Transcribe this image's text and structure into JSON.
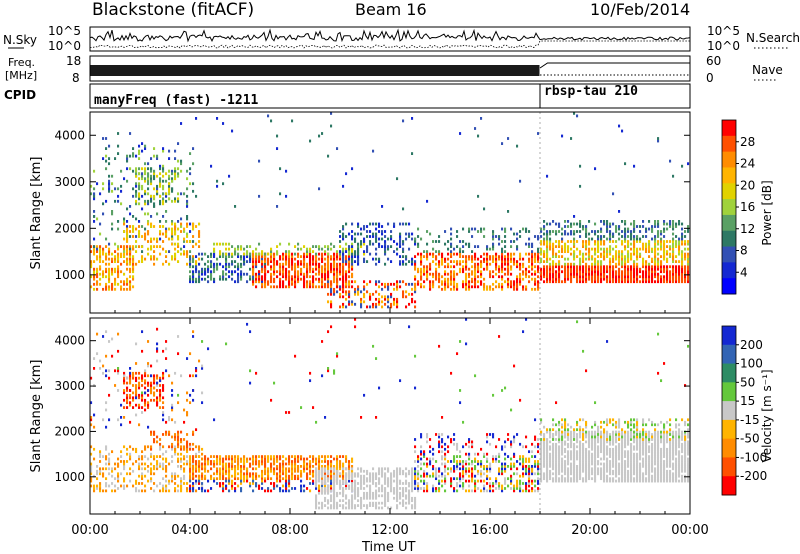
{
  "header": {
    "station": "Blackstone (fitACF)",
    "beam": "Beam 16",
    "date": "10/Feb/2014"
  },
  "summary_panels": {
    "nsky_label": "N.Sky",
    "nsky_top_tick": "10^5",
    "nsky_bottom_tick": "10^0",
    "nsearch_label": "N.Search",
    "freq_label_line1": "Freq.",
    "freq_label_line2": "[MHz]",
    "freq_top_tick": "18",
    "freq_bottom_tick": "8",
    "nave_label": "Nave",
    "nave_top_tick": "60",
    "nave_bottom_tick": "0",
    "cpid_label": "CPID",
    "cpid_segments": [
      {
        "name": "manyFreq (fast) -1211",
        "start_h": 0,
        "end_h": 18
      },
      {
        "name": "rbsp-tau 210",
        "start_h": 18,
        "end_h": 24
      }
    ]
  },
  "chart_data": [
    {
      "type": "heatmap",
      "name": "power",
      "ylabel": "Slant Range [km]",
      "colorbar_label": "Power [dB]",
      "colorbar_ticks": [
        "28",
        "24",
        "20",
        "16",
        "12",
        "8",
        "4"
      ],
      "colorbar_colors": [
        "#ff0000",
        "#ff5000",
        "#ff8c00",
        "#ffb400",
        "#e1d200",
        "#a0d23c",
        "#5aa064",
        "#2d7864",
        "#3250b4",
        "#1428d2",
        "#0000ff"
      ],
      "x_range_hours": [
        0,
        24
      ],
      "y_range_km": [
        180,
        4500
      ],
      "yticks": [
        1000,
        2000,
        3000,
        4000
      ],
      "ytick_labels": [
        "1000",
        "2000",
        "3000",
        "4000"
      ],
      "regions": [
        {
          "t0": 0.0,
          "t1": 1.8,
          "r0": 650,
          "r1": 1650,
          "colors": [
            "#ff8c00",
            "#ff5000",
            "#ffb400",
            "#e1d200"
          ],
          "density": 0.6
        },
        {
          "t0": 0.0,
          "t1": 4.2,
          "r0": 1500,
          "r1": 3800,
          "colors": [
            "#5aa064",
            "#3250b4",
            "#2d7864",
            "#a0d23c",
            "#1428d2"
          ],
          "density": 0.12
        },
        {
          "t0": 1.8,
          "t1": 3.6,
          "r0": 2500,
          "r1": 3300,
          "colors": [
            "#5aa064",
            "#2d7864",
            "#a0d23c",
            "#e1d200"
          ],
          "density": 0.45
        },
        {
          "t0": 1.4,
          "t1": 4.4,
          "r0": 1200,
          "r1": 2100,
          "colors": [
            "#ffb400",
            "#e1d200",
            "#ff8c00"
          ],
          "density": 0.35
        },
        {
          "t0": 4.0,
          "t1": 7.0,
          "r0": 850,
          "r1": 1450,
          "colors": [
            "#2d7864",
            "#5aa064",
            "#3250b4",
            "#1428d2"
          ],
          "density": 0.55
        },
        {
          "t0": 6.5,
          "t1": 10.5,
          "r0": 700,
          "r1": 1450,
          "colors": [
            "#ff0000",
            "#ff5000",
            "#ff8c00"
          ],
          "density": 0.75
        },
        {
          "t0": 5.0,
          "t1": 11.0,
          "r0": 1400,
          "r1": 1700,
          "colors": [
            "#a0d23c",
            "#e1d200",
            "#5aa064"
          ],
          "density": 0.4
        },
        {
          "t0": 9.5,
          "t1": 13.0,
          "r0": 280,
          "r1": 900,
          "colors": [
            "#ff5000",
            "#ff0000",
            "#ffb400",
            "#3250b4"
          ],
          "density": 0.45
        },
        {
          "t0": 10.0,
          "t1": 13.0,
          "r0": 1200,
          "r1": 2100,
          "colors": [
            "#1428d2",
            "#3250b4",
            "#2d7864"
          ],
          "density": 0.35
        },
        {
          "t0": 13.0,
          "t1": 18.0,
          "r0": 650,
          "r1": 1500,
          "colors": [
            "#ff5000",
            "#ff0000",
            "#ff8c00",
            "#ffb400"
          ],
          "density": 0.6
        },
        {
          "t0": 13.0,
          "t1": 18.0,
          "r0": 1500,
          "r1": 2000,
          "colors": [
            "#5aa064",
            "#2d7864",
            "#3250b4"
          ],
          "density": 0.25
        },
        {
          "t0": 18.0,
          "t1": 24.0,
          "r0": 850,
          "r1": 1200,
          "colors": [
            "#ff0000",
            "#ff5000"
          ],
          "density": 0.9
        },
        {
          "t0": 18.0,
          "t1": 24.0,
          "r0": 1200,
          "r1": 1750,
          "colors": [
            "#ffb400",
            "#e1d200",
            "#ff8c00",
            "#a0d23c"
          ],
          "density": 0.65
        },
        {
          "t0": 18.0,
          "t1": 24.0,
          "r0": 1750,
          "r1": 2200,
          "colors": [
            "#2d7864",
            "#5aa064",
            "#3250b4"
          ],
          "density": 0.5
        },
        {
          "t0": 0.0,
          "t1": 24.0,
          "r0": 2200,
          "r1": 4500,
          "colors": [
            "#1428d2",
            "#3250b4",
            "#2d7864"
          ],
          "density": 0.012
        }
      ]
    },
    {
      "type": "heatmap",
      "name": "velocity",
      "ylabel": "Slant Range [km]",
      "colorbar_label": "Velocity [m s⁻¹]",
      "colorbar_ticks": [
        "200",
        "100",
        "50",
        "15",
        "-15",
        "-50",
        "-100",
        "-200"
      ],
      "colorbar_colors": [
        "#1428d2",
        "#3264b4",
        "#2d8c64",
        "#64c83c",
        "#c8c8c8",
        "#ffb400",
        "#ff8c00",
        "#ff5000",
        "#ff0000"
      ],
      "x_range_hours": [
        0,
        24
      ],
      "y_range_km": [
        180,
        4500
      ],
      "yticks": [
        1000,
        2000,
        3000,
        4000
      ],
      "ytick_labels": [
        "1000",
        "2000",
        "3000",
        "4000"
      ],
      "regions": [
        {
          "t0": 0.0,
          "t1": 4.5,
          "r0": 650,
          "r1": 1700,
          "colors": [
            "#c8c8c8",
            "#ff8c00",
            "#ffb400"
          ],
          "density": 0.4
        },
        {
          "t0": 1.4,
          "t1": 3.0,
          "r0": 2500,
          "r1": 3300,
          "colors": [
            "#ff0000",
            "#ff5000",
            "#ff8c00"
          ],
          "density": 0.55
        },
        {
          "t0": 2.5,
          "t1": 4.2,
          "r0": 1600,
          "r1": 2000,
          "colors": [
            "#ff5000",
            "#ff8c00"
          ],
          "density": 0.45
        },
        {
          "t0": 0.0,
          "t1": 4.5,
          "r0": 2000,
          "r1": 4300,
          "colors": [
            "#ff0000",
            "#1428d2",
            "#ff8c00",
            "#c8c8c8"
          ],
          "density": 0.08
        },
        {
          "t0": 4.0,
          "t1": 10.5,
          "r0": 950,
          "r1": 1450,
          "colors": [
            "#ff8c00",
            "#ffb400",
            "#ff5000"
          ],
          "density": 0.75
        },
        {
          "t0": 4.0,
          "t1": 10.5,
          "r0": 650,
          "r1": 950,
          "colors": [
            "#1428d2",
            "#3264b4",
            "#ff0000",
            "#ffb400"
          ],
          "density": 0.45
        },
        {
          "t0": 9.0,
          "t1": 13.0,
          "r0": 300,
          "r1": 1200,
          "colors": [
            "#c8c8c8"
          ],
          "density": 0.65
        },
        {
          "t0": 13.0,
          "t1": 18.0,
          "r0": 650,
          "r1": 1500,
          "colors": [
            "#ffb400",
            "#c8c8c8",
            "#1428d2",
            "#ff0000",
            "#64c83c"
          ],
          "density": 0.55
        },
        {
          "t0": 13.0,
          "t1": 18.0,
          "r0": 1500,
          "r1": 1950,
          "colors": [
            "#1428d2",
            "#ff0000",
            "#c8c8c8"
          ],
          "density": 0.25
        },
        {
          "t0": 18.0,
          "t1": 24.0,
          "r0": 900,
          "r1": 2000,
          "colors": [
            "#c8c8c8"
          ],
          "density": 0.88
        },
        {
          "t0": 18.0,
          "t1": 24.0,
          "r0": 1800,
          "r1": 2300,
          "colors": [
            "#c8c8c8",
            "#64c83c",
            "#ffb400"
          ],
          "density": 0.35
        },
        {
          "t0": 0.0,
          "t1": 24.0,
          "r0": 2200,
          "r1": 4500,
          "colors": [
            "#1428d2",
            "#ff0000",
            "#64c83c"
          ],
          "density": 0.01
        }
      ]
    }
  ],
  "x_axis": {
    "label": "Time UT",
    "range_hours": [
      0,
      24
    ],
    "ticks_hours": [
      0,
      4,
      8,
      12,
      16,
      20,
      24
    ],
    "tick_labels": [
      "00:00",
      "04:00",
      "08:00",
      "12:00",
      "16:00",
      "20:00",
      "00:00"
    ]
  }
}
